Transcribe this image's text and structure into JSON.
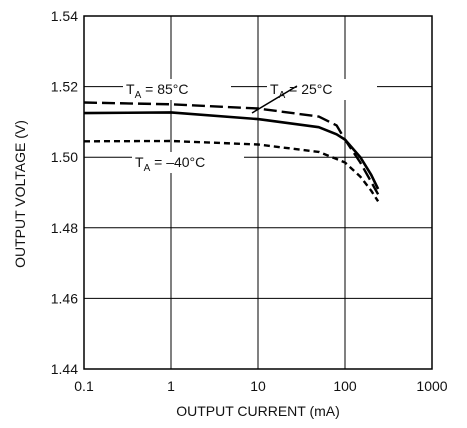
{
  "chart_data": {
    "type": "line",
    "title": "",
    "xlabel": "OUTPUT CURRENT (mA)",
    "ylabel": "OUTPUT VOLTAGE (V)",
    "xscale": "log",
    "xlim": [
      0.1,
      1000
    ],
    "ylim": [
      1.44,
      1.54
    ],
    "x_ticks": [
      0.1,
      1,
      10,
      100,
      1000
    ],
    "x_tick_labels": [
      "0.1",
      "1",
      "10",
      "100",
      "1000"
    ],
    "y_ticks": [
      1.44,
      1.46,
      1.48,
      1.5,
      1.52,
      1.54
    ],
    "y_tick_labels": [
      "1.44",
      "1.46",
      "1.48",
      "1.50",
      "1.52",
      "1.54"
    ],
    "grid": true,
    "legend": "none",
    "series": [
      {
        "label": {
          "main": "T",
          "sub": "A",
          "rest": " = 85°C"
        },
        "color": "#000000",
        "line_style": "long-dash",
        "x": [
          0.1,
          1,
          10,
          50,
          80,
          100,
          150,
          200,
          240
        ],
        "y": [
          1.5155,
          1.515,
          1.5138,
          1.5115,
          1.509,
          1.505,
          1.4985,
          1.493,
          1.4895
        ]
      },
      {
        "label": {
          "main": "T",
          "sub": "A",
          "rest": " = 25°C"
        },
        "color": "#000000",
        "line_style": "solid",
        "x": [
          0.1,
          1,
          10,
          50,
          80,
          100,
          150,
          200,
          240
        ],
        "y": [
          1.5125,
          1.5127,
          1.5108,
          1.5085,
          1.5065,
          1.505,
          1.5,
          1.495,
          1.491
        ]
      },
      {
        "label": {
          "main": "T",
          "sub": "A",
          "rest": " = –40°C"
        },
        "color": "#000000",
        "line_style": "short-dash",
        "x": [
          0.1,
          1,
          10,
          50,
          80,
          100,
          150,
          200,
          240
        ],
        "y": [
          1.5045,
          1.5046,
          1.5036,
          1.5015,
          1.4995,
          1.4985,
          1.4945,
          1.4905,
          1.4875
        ]
      }
    ]
  }
}
